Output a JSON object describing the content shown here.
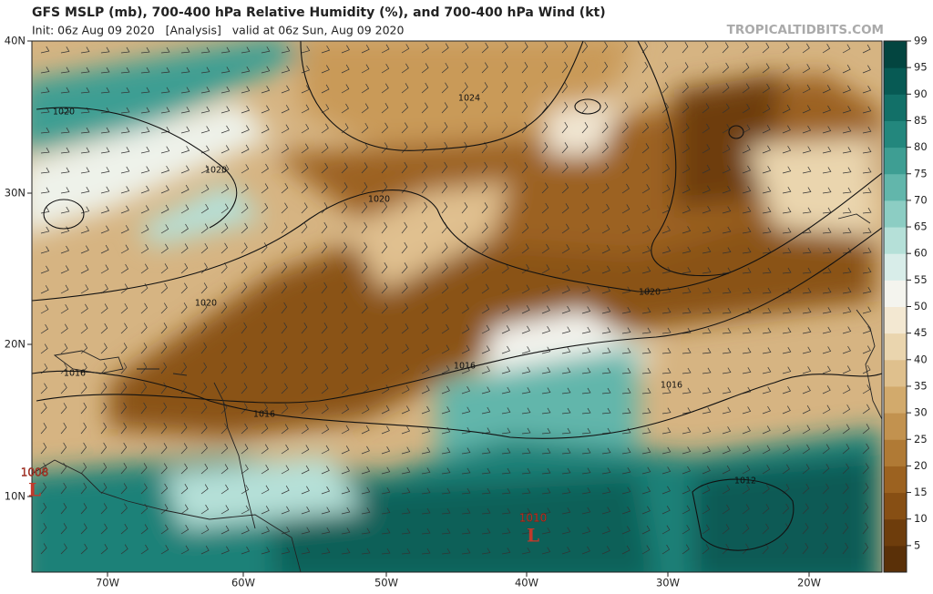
{
  "header": {
    "title": "GFS MSLP (mb), 700-400 hPa Relative Humidity (%), and 700-400 hPa Wind (kt)",
    "subtitle": "Init: 06z Aug 09 2020   [Analysis]   valid at 06z Sun, Aug 09 2020",
    "brand": "TROPICALTIDBITS.COM"
  },
  "map": {
    "lat_labels": [
      "40N",
      "30N",
      "20N",
      "10N"
    ],
    "lon_labels": [
      "70W",
      "60W",
      "50W",
      "40W",
      "30W",
      "20W"
    ],
    "isobar_labels": [
      "1024",
      "1020",
      "1020",
      "1020",
      "1020",
      "1020",
      "1016",
      "1016",
      "1016",
      "1016",
      "1012"
    ],
    "lows": [
      {
        "pressure": "1008",
        "symbol": "L"
      },
      {
        "pressure": "1010",
        "symbol": "L"
      }
    ]
  },
  "colorbar": {
    "ticks": [
      5,
      10,
      15,
      20,
      25,
      30,
      35,
      40,
      45,
      50,
      55,
      60,
      65,
      70,
      75,
      80,
      85,
      90,
      95,
      99
    ],
    "colors": [
      "#5a3008",
      "#6e3d0c",
      "#874f14",
      "#9c6220",
      "#b07a35",
      "#c2924f",
      "#d2aa6c",
      "#dfc08d",
      "#ead5ae",
      "#f3e8d2",
      "#f4f4ee",
      "#d8ede9",
      "#b5e0d8",
      "#8ccdc3",
      "#62b6ab",
      "#3e9e93",
      "#23877d",
      "#127068",
      "#075a54",
      "#034540"
    ]
  }
}
